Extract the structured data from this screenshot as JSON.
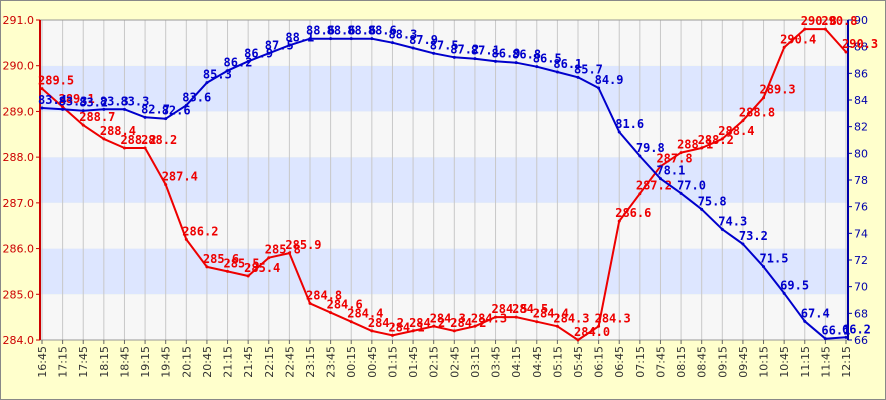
{
  "chart_data": {
    "type": "line",
    "x": [
      "16:45",
      "17:15",
      "17:45",
      "18:15",
      "18:45",
      "19:15",
      "19:45",
      "20:15",
      "20:45",
      "21:15",
      "21:45",
      "22:15",
      "22:45",
      "23:15",
      "23:45",
      "00:15",
      "00:45",
      "01:15",
      "01:45",
      "02:15",
      "02:45",
      "03:15",
      "03:45",
      "04:15",
      "04:45",
      "05:15",
      "05:45",
      "06:15",
      "06:45",
      "07:15",
      "07:45",
      "08:15",
      "08:45",
      "09:15",
      "09:45",
      "10:15",
      "10:45",
      "11:15",
      "11:45",
      "12:15"
    ],
    "y_left": {
      "range": [
        284.0,
        291.0
      ],
      "ticks": [
        "291.0",
        "290.0",
        "289.0",
        "288.0",
        "287.0",
        "286.0",
        "285.0",
        "284.0"
      ]
    },
    "y_right": {
      "range": [
        66,
        90
      ],
      "ticks": [
        "90",
        "88",
        "86",
        "84",
        "82",
        "80",
        "78",
        "76",
        "74",
        "72",
        "70",
        "68",
        "66"
      ]
    },
    "grid": true,
    "series": [
      {
        "axis": "left",
        "color": "#ee0000",
        "values": [
          289.5,
          289.1,
          288.7,
          288.4,
          288.2,
          288.2,
          287.4,
          286.2,
          285.6,
          285.5,
          285.4,
          285.8,
          285.9,
          284.8,
          284.6,
          284.4,
          284.2,
          284.1,
          284.2,
          284.3,
          284.2,
          284.3,
          284.5,
          284.5,
          284.4,
          284.3,
          284.0,
          284.3,
          286.6,
          287.2,
          287.8,
          288.1,
          288.2,
          288.4,
          288.8,
          289.3,
          290.4,
          290.8,
          290.8,
          290.3
        ],
        "labels": [
          "289.5",
          "289.1",
          "288.7",
          "288.4",
          "288.2",
          "288.2",
          "287.4",
          "286.2",
          "285.6",
          "285.5",
          "285.4",
          "285.8",
          "285.9",
          "284.8",
          "284.6",
          "284.4",
          "284.2",
          "284.1",
          "284.2",
          "284.3",
          "284.2",
          "284.3",
          "284.5",
          "284.5",
          "284.4",
          "284.3",
          "284.0",
          "284.3",
          "286.6",
          "287.2",
          "287.8",
          "288.1",
          "288.2",
          "288.4",
          "288.8",
          "289.3",
          "290.4",
          "290.8",
          "290.8",
          "290.3"
        ]
      },
      {
        "axis": "right",
        "color": "#0000cc",
        "values": [
          83.4,
          83.3,
          83.2,
          83.3,
          83.3,
          82.7,
          82.6,
          83.6,
          85.3,
          86.2,
          86.9,
          87.5,
          88.1,
          88.6,
          88.6,
          88.6,
          88.6,
          88.3,
          87.9,
          87.5,
          87.2,
          87.1,
          86.9,
          86.8,
          86.5,
          86.1,
          85.7,
          84.9,
          81.6,
          79.8,
          78.1,
          77.0,
          75.8,
          74.3,
          73.2,
          71.5,
          69.5,
          67.4,
          66.1,
          66.2
        ],
        "labels": [
          "83.4",
          "83.3",
          "83.2",
          "83.3",
          "83.3",
          "82.7",
          "82.6",
          "83.6",
          "85.3",
          "86.2",
          "86.9",
          "87.5",
          "88.1",
          "88.6",
          "88.6",
          "88.6",
          "88.6",
          "88.3",
          "87.9",
          "87.5",
          "87.2",
          "87.1",
          "86.9",
          "86.8",
          "86.5",
          "86.1",
          "85.7",
          "84.9",
          "81.6",
          "79.8",
          "78.1",
          "77.0",
          "75.8",
          "74.3",
          "73.2",
          "71.5",
          "69.5",
          "67.4",
          "66.1",
          "66.2"
        ]
      }
    ]
  },
  "colors": {
    "background": "#ffffcc",
    "plot_band_light": "#f7f7f7",
    "plot_band_dark": "#dde6ff",
    "left_axis": "#cc0000",
    "right_axis": "#0000aa"
  }
}
